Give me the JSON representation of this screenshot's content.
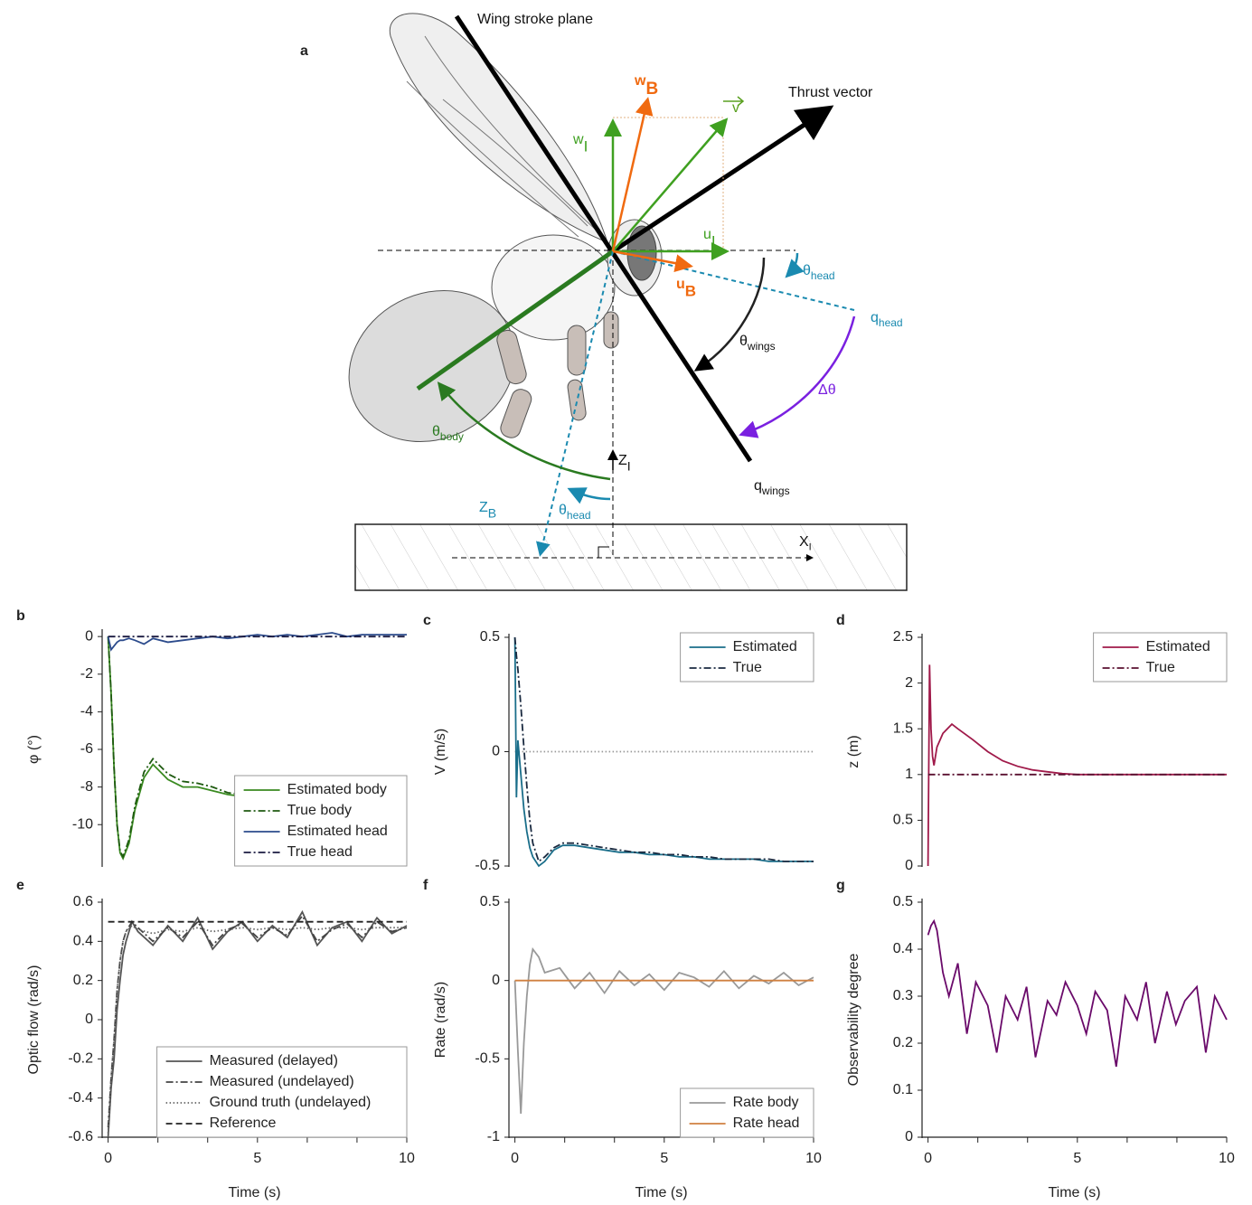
{
  "diagram": {
    "panel": "a",
    "labels": [
      {
        "text": "Wing stroke plane"
      },
      {
        "text": "Thrust vector"
      },
      {
        "text": "w",
        "sub": "B"
      },
      {
        "text": "v"
      },
      {
        "text": "w",
        "sub": "I"
      },
      {
        "text": "u",
        "sub": "I"
      },
      {
        "text": "u",
        "sub": "B"
      },
      {
        "text": "θ",
        "sub": "head"
      },
      {
        "text": "q",
        "sub": "head"
      },
      {
        "text": "θ",
        "sub": "wings"
      },
      {
        "text": "Δθ"
      },
      {
        "text": "θ",
        "sub": "body"
      },
      {
        "text": "Z",
        "sub": "I"
      },
      {
        "text": "Z",
        "sub": "B"
      },
      {
        "text": "θ",
        "sub": "head"
      },
      {
        "text": "q",
        "sub": "wings"
      },
      {
        "text": "X",
        "sub": "I"
      }
    ]
  },
  "chart_data": [
    {
      "type": "line",
      "panel": "b",
      "ylabel": "φ (°)",
      "xlim": [
        -0.2,
        10
      ],
      "ylim": [
        -12.2,
        0.2
      ],
      "yticks": [
        0,
        -2,
        -4,
        -6,
        -8,
        -10
      ],
      "legend": "lower right",
      "x": [
        0,
        0.1,
        0.2,
        0.3,
        0.4,
        0.5,
        0.7,
        0.9,
        1.2,
        1.5,
        2,
        2.5,
        3,
        3.5,
        4,
        4.5,
        5,
        5.5,
        6,
        6.5,
        7,
        7.5,
        8,
        8.5,
        9,
        9.5,
        10
      ],
      "series": [
        {
          "name": "Estimated body",
          "color": "#3a8a20",
          "linestyle": "solid",
          "values": [
            0,
            -3,
            -7,
            -10,
            -11.5,
            -11.8,
            -11,
            -9.2,
            -7.5,
            -6.8,
            -7.6,
            -8,
            -8,
            -8.2,
            -8.4,
            -8.5,
            -8.7,
            -9,
            -9.3,
            -9.2,
            -9.5,
            -9.8,
            -9.8,
            -9.9,
            -10,
            -10.1,
            -10.2
          ]
        },
        {
          "name": "True body",
          "color": "#1e5a10",
          "linestyle": "dashdot",
          "values": [
            0,
            -3,
            -7,
            -10,
            -11.4,
            -11.7,
            -10.8,
            -9,
            -7.2,
            -6.5,
            -7.3,
            -7.7,
            -7.8,
            -8,
            -8.3,
            -8.4,
            -8.6,
            -8.9,
            -9.2,
            -9.1,
            -9.4,
            -9.7,
            -9.7,
            -9.8,
            -9.9,
            -10,
            -10.1
          ]
        },
        {
          "name": "Estimated head",
          "color": "#2c4b8c",
          "linestyle": "solid",
          "values": [
            0,
            -0.7,
            -0.5,
            -0.3,
            -0.2,
            -0.2,
            -0.1,
            -0.2,
            -0.4,
            -0.1,
            -0.3,
            -0.2,
            -0.1,
            0,
            -0.1,
            0,
            0.1,
            0,
            0.1,
            0,
            0.1,
            0.2,
            0,
            0.1,
            0.1,
            0.1,
            0.1
          ]
        },
        {
          "name": "True head",
          "color": "#1a1a40",
          "linestyle": "dashdot",
          "values": [
            0,
            0,
            0,
            0,
            0,
            0,
            0,
            0,
            0,
            0,
            0,
            0,
            0,
            0,
            0,
            0,
            0,
            0,
            0,
            0,
            0,
            0,
            0,
            0,
            0,
            0,
            0
          ]
        }
      ]
    },
    {
      "type": "line",
      "panel": "c",
      "ylabel": "V (m/s)",
      "xlim": [
        -0.2,
        10
      ],
      "ylim": [
        -0.5,
        0.5
      ],
      "yticks": [
        0.5,
        0,
        -0.5
      ],
      "legend": "upper right",
      "x": [
        0,
        0.05,
        0.1,
        0.2,
        0.3,
        0.4,
        0.5,
        0.6,
        0.8,
        1,
        1.3,
        1.6,
        2,
        2.5,
        3,
        3.5,
        4,
        4.5,
        5,
        5.5,
        6,
        6.5,
        7,
        7.5,
        8,
        8.5,
        9,
        9.5,
        10
      ],
      "series": [
        {
          "color": "#999999",
          "linestyle": "dotted",
          "x": [
            0,
            10
          ],
          "values": [
            0,
            0
          ]
        },
        {
          "name": "Estimated",
          "color": "#1a6e8a",
          "linestyle": "solid",
          "values": [
            0.5,
            -0.2,
            0.05,
            -0.1,
            -0.25,
            -0.35,
            -0.42,
            -0.46,
            -0.5,
            -0.48,
            -0.43,
            -0.41,
            -0.41,
            -0.42,
            -0.43,
            -0.44,
            -0.44,
            -0.45,
            -0.45,
            -0.46,
            -0.46,
            -0.47,
            -0.47,
            -0.47,
            -0.47,
            -0.48,
            -0.48,
            -0.48,
            -0.48
          ]
        },
        {
          "name": "True",
          "color": "#1a2a40",
          "linestyle": "dashdot",
          "values": [
            0.5,
            0.42,
            0.36,
            0.2,
            0.02,
            -0.15,
            -0.3,
            -0.4,
            -0.48,
            -0.46,
            -0.42,
            -0.4,
            -0.4,
            -0.41,
            -0.42,
            -0.43,
            -0.44,
            -0.44,
            -0.45,
            -0.45,
            -0.46,
            -0.46,
            -0.47,
            -0.47,
            -0.47,
            -0.47,
            -0.48,
            -0.48,
            -0.48
          ]
        }
      ]
    },
    {
      "type": "line",
      "panel": "d",
      "ylabel": "z (m)",
      "xlim": [
        -0.2,
        10
      ],
      "ylim": [
        0,
        2.5
      ],
      "yticks": [
        0,
        0.5,
        1,
        1.5,
        2,
        2.5
      ],
      "legend": "upper right",
      "x": [
        0,
        0.05,
        0.1,
        0.15,
        0.2,
        0.3,
        0.5,
        0.8,
        1,
        1.5,
        2,
        2.5,
        3,
        3.5,
        4,
        4.5,
        5,
        6,
        7,
        8,
        9,
        10
      ],
      "series": [
        {
          "name": "Estimated",
          "color": "#a01a4a",
          "linestyle": "solid",
          "values": [
            0,
            2.2,
            1.5,
            1.2,
            1.1,
            1.3,
            1.45,
            1.55,
            1.5,
            1.38,
            1.25,
            1.15,
            1.09,
            1.05,
            1.03,
            1.01,
            1,
            1,
            1,
            1,
            1,
            1
          ]
        },
        {
          "name": "True",
          "color": "#5a1030",
          "linestyle": "dashdot",
          "values": [
            1,
            1,
            1,
            1,
            1,
            1,
            1,
            1,
            1,
            1,
            1,
            1,
            1,
            1,
            1,
            1,
            1,
            1,
            1,
            1,
            1,
            1
          ]
        }
      ]
    },
    {
      "type": "line",
      "panel": "e",
      "ylabel": "Optic flow (rad/s)",
      "xlabel": "Time (s)",
      "xlim": [
        -0.2,
        10
      ],
      "ylim": [
        -0.6,
        0.6
      ],
      "xticks": [
        0,
        5,
        10
      ],
      "xminorticks": [
        1.667,
        3.333,
        6.667,
        8.333
      ],
      "yticks": [
        0.6,
        0.4,
        0.2,
        0,
        -0.2,
        -0.4,
        -0.6
      ],
      "legend": "lower right",
      "x": [
        0,
        0.1,
        0.2,
        0.3,
        0.4,
        0.5,
        0.6,
        0.8,
        1,
        1.5,
        2,
        2.5,
        3,
        3.5,
        4,
        4.5,
        5,
        5.5,
        6,
        6.5,
        7,
        7.5,
        8,
        8.5,
        9,
        9.5,
        10
      ],
      "series": [
        {
          "name": "Measured (delayed)",
          "color": "#555555",
          "linestyle": "solid",
          "values": [
            -0.6,
            -0.35,
            -0.2,
            0.05,
            0.2,
            0.33,
            0.4,
            0.5,
            0.45,
            0.38,
            0.48,
            0.4,
            0.52,
            0.36,
            0.45,
            0.5,
            0.4,
            0.48,
            0.42,
            0.55,
            0.38,
            0.47,
            0.5,
            0.4,
            0.52,
            0.44,
            0.48
          ]
        },
        {
          "name": "Measured (undelayed)",
          "color": "#444444",
          "linestyle": "dashdot",
          "values": [
            -0.55,
            -0.3,
            -0.1,
            0.15,
            0.3,
            0.4,
            0.45,
            0.5,
            0.47,
            0.4,
            0.47,
            0.42,
            0.5,
            0.38,
            0.46,
            0.49,
            0.42,
            0.47,
            0.43,
            0.53,
            0.4,
            0.46,
            0.49,
            0.42,
            0.5,
            0.45,
            0.47
          ]
        },
        {
          "name": "Ground truth (undelayed)",
          "color": "#666666",
          "linestyle": "dotted",
          "values": [
            -0.58,
            -0.3,
            -0.1,
            0.15,
            0.3,
            0.4,
            0.45,
            0.48,
            0.46,
            0.44,
            0.46,
            0.45,
            0.47,
            0.45,
            0.46,
            0.47,
            0.46,
            0.47,
            0.46,
            0.47,
            0.46,
            0.47,
            0.47,
            0.46,
            0.47,
            0.47,
            0.47
          ]
        },
        {
          "name": "Reference",
          "color": "#222222",
          "linestyle": "dashed",
          "x": [
            0,
            10
          ],
          "values": [
            0.5,
            0.5
          ]
        }
      ]
    },
    {
      "type": "line",
      "panel": "f",
      "ylabel": "Rate (rad/s)",
      "xlabel": "Time (s)",
      "xlim": [
        -0.2,
        10
      ],
      "ylim": [
        -1,
        0.5
      ],
      "xticks": [
        0,
        5,
        10
      ],
      "xminorticks": [
        1.667,
        3.333,
        6.667,
        8.333
      ],
      "yticks": [
        0.5,
        0,
        -0.5,
        -1
      ],
      "legend": "lower right",
      "x": [
        0,
        0.1,
        0.2,
        0.3,
        0.4,
        0.5,
        0.6,
        0.8,
        1,
        1.5,
        2,
        2.5,
        3,
        3.5,
        4,
        4.5,
        5,
        5.5,
        6,
        6.5,
        7,
        7.5,
        8,
        8.5,
        9,
        9.5,
        10
      ],
      "series": [
        {
          "name": "Rate body",
          "color": "#999999",
          "linestyle": "solid",
          "values": [
            0,
            -0.45,
            -0.85,
            -0.4,
            -0.1,
            0.1,
            0.2,
            0.15,
            0.05,
            0.08,
            -0.05,
            0.05,
            -0.08,
            0.06,
            -0.03,
            0.04,
            -0.06,
            0.05,
            0.02,
            -0.04,
            0.06,
            -0.05,
            0.03,
            -0.02,
            0.05,
            -0.03,
            0.02
          ]
        },
        {
          "name": "Rate head",
          "color": "#d08040",
          "linestyle": "solid",
          "values": [
            0,
            0,
            0,
            0,
            0,
            0,
            0,
            0,
            0,
            0,
            0,
            0,
            0,
            0,
            0,
            0,
            0,
            0,
            0,
            0,
            0,
            0,
            0,
            0,
            0,
            0,
            0
          ]
        }
      ]
    },
    {
      "type": "line",
      "panel": "g",
      "ylabel": "Observability degree",
      "xlabel": "Time (s)",
      "xlim": [
        -0.2,
        10
      ],
      "ylim": [
        0,
        0.5
      ],
      "xticks": [
        0,
        5,
        10
      ],
      "xminorticks": [
        1.667,
        3.333,
        6.667,
        8.333
      ],
      "yticks": [
        0,
        0.1,
        0.2,
        0.3,
        0.4,
        0.5
      ],
      "x": [
        0,
        0.1,
        0.2,
        0.3,
        0.5,
        0.7,
        1,
        1.3,
        1.6,
        2,
        2.3,
        2.6,
        3,
        3.3,
        3.6,
        4,
        4.3,
        4.6,
        5,
        5.3,
        5.6,
        6,
        6.3,
        6.6,
        7,
        7.3,
        7.6,
        8,
        8.3,
        8.6,
        9,
        9.3,
        9.6,
        10
      ],
      "series": [
        {
          "color": "#6a0a6a",
          "linestyle": "solid",
          "values": [
            0.43,
            0.45,
            0.46,
            0.44,
            0.35,
            0.3,
            0.37,
            0.22,
            0.33,
            0.28,
            0.18,
            0.3,
            0.25,
            0.32,
            0.17,
            0.29,
            0.26,
            0.33,
            0.28,
            0.22,
            0.31,
            0.27,
            0.15,
            0.3,
            0.25,
            0.33,
            0.2,
            0.31,
            0.24,
            0.29,
            0.32,
            0.18,
            0.3,
            0.25
          ]
        }
      ]
    }
  ]
}
